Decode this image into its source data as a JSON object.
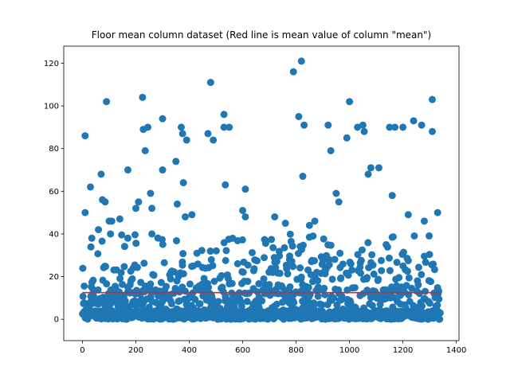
{
  "chart_data": {
    "type": "scatter",
    "title": "Floor mean column dataset (Red line is mean value of column \"mean\")",
    "xlabel": "",
    "ylabel": "",
    "xlim": [
      -70,
      1410
    ],
    "ylim": [
      -10,
      128
    ],
    "x_ticks": [
      0,
      200,
      400,
      600,
      800,
      1000,
      1200,
      1400
    ],
    "y_ticks": [
      0,
      20,
      40,
      60,
      80,
      100,
      120
    ],
    "grid": false,
    "legend": "none",
    "colors": {
      "points": "#1f77b4",
      "mean_line": "#d62728"
    },
    "mean_line": {
      "y": 12.5,
      "x_start": 0,
      "x_end": 1340
    },
    "highlighted_points": [
      {
        "x": 10,
        "y": 86
      },
      {
        "x": 10,
        "y": 50
      },
      {
        "x": 30,
        "y": 62
      },
      {
        "x": 35,
        "y": 38
      },
      {
        "x": 60,
        "y": 42
      },
      {
        "x": 70,
        "y": 68
      },
      {
        "x": 75,
        "y": 56
      },
      {
        "x": 85,
        "y": 55
      },
      {
        "x": 90,
        "y": 102
      },
      {
        "x": 100,
        "y": 46
      },
      {
        "x": 105,
        "y": 40
      },
      {
        "x": 110,
        "y": 46
      },
      {
        "x": 140,
        "y": 47
      },
      {
        "x": 170,
        "y": 70
      },
      {
        "x": 170,
        "y": 38
      },
      {
        "x": 200,
        "y": 52
      },
      {
        "x": 210,
        "y": 55
      },
      {
        "x": 225,
        "y": 104
      },
      {
        "x": 228,
        "y": 89
      },
      {
        "x": 235,
        "y": 79
      },
      {
        "x": 245,
        "y": 90
      },
      {
        "x": 255,
        "y": 59
      },
      {
        "x": 260,
        "y": 52
      },
      {
        "x": 260,
        "y": 40
      },
      {
        "x": 300,
        "y": 94
      },
      {
        "x": 300,
        "y": 70
      },
      {
        "x": 350,
        "y": 74
      },
      {
        "x": 355,
        "y": 54
      },
      {
        "x": 370,
        "y": 90
      },
      {
        "x": 375,
        "y": 87
      },
      {
        "x": 378,
        "y": 64
      },
      {
        "x": 385,
        "y": 48
      },
      {
        "x": 390,
        "y": 84
      },
      {
        "x": 410,
        "y": 49
      },
      {
        "x": 470,
        "y": 87
      },
      {
        "x": 480,
        "y": 111
      },
      {
        "x": 490,
        "y": 84
      },
      {
        "x": 530,
        "y": 96
      },
      {
        "x": 530,
        "y": 90
      },
      {
        "x": 535,
        "y": 63
      },
      {
        "x": 550,
        "y": 90
      },
      {
        "x": 600,
        "y": 51
      },
      {
        "x": 610,
        "y": 61
      },
      {
        "x": 610,
        "y": 48
      },
      {
        "x": 720,
        "y": 48
      },
      {
        "x": 760,
        "y": 45
      },
      {
        "x": 790,
        "y": 116
      },
      {
        "x": 810,
        "y": 95
      },
      {
        "x": 820,
        "y": 121
      },
      {
        "x": 825,
        "y": 67
      },
      {
        "x": 830,
        "y": 91
      },
      {
        "x": 850,
        "y": 44
      },
      {
        "x": 870,
        "y": 46
      },
      {
        "x": 920,
        "y": 91
      },
      {
        "x": 930,
        "y": 79
      },
      {
        "x": 950,
        "y": 59
      },
      {
        "x": 960,
        "y": 55
      },
      {
        "x": 990,
        "y": 85
      },
      {
        "x": 1000,
        "y": 102
      },
      {
        "x": 1030,
        "y": 90
      },
      {
        "x": 1050,
        "y": 91
      },
      {
        "x": 1055,
        "y": 88
      },
      {
        "x": 1070,
        "y": 68
      },
      {
        "x": 1080,
        "y": 71
      },
      {
        "x": 1110,
        "y": 71
      },
      {
        "x": 1150,
        "y": 90
      },
      {
        "x": 1160,
        "y": 58
      },
      {
        "x": 1170,
        "y": 90
      },
      {
        "x": 1200,
        "y": 90
      },
      {
        "x": 1220,
        "y": 49
      },
      {
        "x": 1240,
        "y": 93
      },
      {
        "x": 1270,
        "y": 91
      },
      {
        "x": 1280,
        "y": 46
      },
      {
        "x": 1310,
        "y": 103
      },
      {
        "x": 1310,
        "y": 88
      },
      {
        "x": 1330,
        "y": 50
      }
    ],
    "dense_cluster": {
      "x_range": [
        0,
        1340
      ],
      "y_range": [
        0,
        40
      ],
      "point_count": 1340,
      "mean": 12.5
    }
  }
}
